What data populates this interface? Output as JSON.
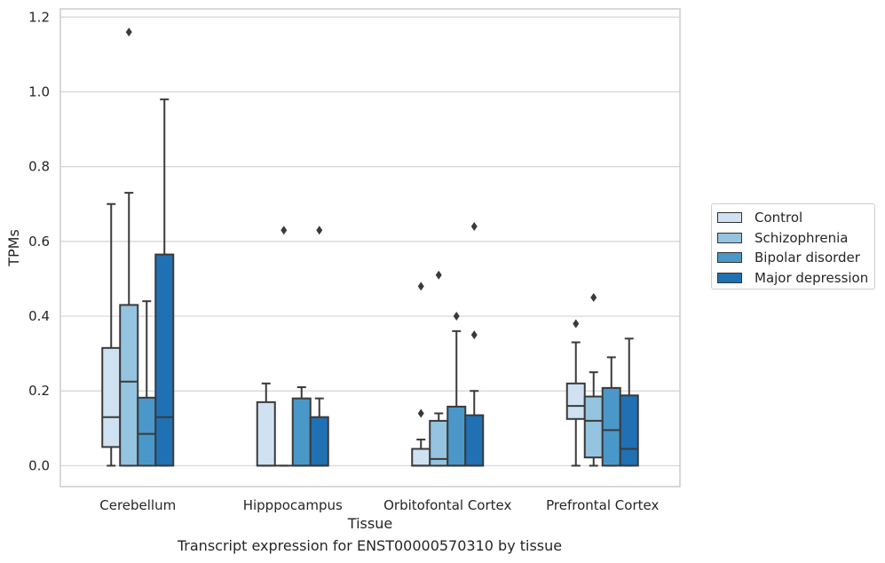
{
  "caption": "Transcript expression for ENST00000570310 by tissue",
  "chart_data": {
    "type": "boxplot",
    "xlabel": "Tissue",
    "ylabel": "TPMs",
    "ylim": [
      -0.056,
      1.222
    ],
    "yticks": [
      0.0,
      0.2,
      0.4,
      0.6,
      0.8,
      1.0,
      1.2
    ],
    "ytick_labels": [
      "0.0",
      "0.2",
      "0.4",
      "0.6",
      "0.8",
      "1.0",
      "1.2"
    ],
    "grid": "horizontal",
    "legend_position": "right-center",
    "categories": [
      "Cerebellum",
      "Hipppocampus",
      "Orbitofontal Cortex",
      "Prefrontal Cortex"
    ],
    "series": [
      {
        "name": "Control",
        "color": "#d0e1f2",
        "boxes": [
          {
            "whislo": 0.0,
            "q1": 0.05,
            "med": 0.13,
            "q3": 0.315,
            "whishi": 0.7,
            "fliers": []
          },
          {
            "whislo": 0.0,
            "q1": 0.0,
            "med": 0.0,
            "q3": 0.17,
            "whishi": 0.22,
            "fliers": []
          },
          {
            "whislo": 0.0,
            "q1": 0.0,
            "med": 0.0,
            "q3": 0.045,
            "whishi": 0.07,
            "fliers": [
              0.14,
              0.48
            ]
          },
          {
            "whislo": 0.0,
            "q1": 0.125,
            "med": 0.16,
            "q3": 0.22,
            "whishi": 0.33,
            "fliers": [
              0.38
            ]
          }
        ]
      },
      {
        "name": "Schizophrenia",
        "color": "#94c4df",
        "boxes": [
          {
            "whislo": 0.0,
            "q1": 0.0,
            "med": 0.225,
            "q3": 0.43,
            "whishi": 0.73,
            "fliers": [
              1.16
            ]
          },
          {
            "whislo": 0.0,
            "q1": 0.0,
            "med": 0.0,
            "q3": 0.0,
            "whishi": 0.0,
            "fliers": [
              0.63
            ]
          },
          {
            "whislo": 0.0,
            "q1": 0.0,
            "med": 0.018,
            "q3": 0.12,
            "whishi": 0.14,
            "fliers": [
              0.51
            ]
          },
          {
            "whislo": 0.0,
            "q1": 0.022,
            "med": 0.12,
            "q3": 0.185,
            "whishi": 0.25,
            "fliers": [
              0.45
            ]
          }
        ]
      },
      {
        "name": "Bipolar disorder",
        "color": "#4a98c9",
        "boxes": [
          {
            "whislo": 0.0,
            "q1": 0.0,
            "med": 0.085,
            "q3": 0.182,
            "whishi": 0.44,
            "fliers": []
          },
          {
            "whislo": 0.0,
            "q1": 0.0,
            "med": 0.0,
            "q3": 0.18,
            "whishi": 0.21,
            "fliers": []
          },
          {
            "whislo": 0.0,
            "q1": 0.0,
            "med": 0.0,
            "q3": 0.158,
            "whishi": 0.36,
            "fliers": [
              0.4
            ]
          },
          {
            "whislo": 0.0,
            "q1": 0.0,
            "med": 0.095,
            "q3": 0.208,
            "whishi": 0.29,
            "fliers": []
          }
        ]
      },
      {
        "name": "Major depression",
        "color": "#2070b4",
        "boxes": [
          {
            "whislo": 0.0,
            "q1": 0.0,
            "med": 0.13,
            "q3": 0.565,
            "whishi": 0.98,
            "fliers": []
          },
          {
            "whislo": 0.0,
            "q1": 0.0,
            "med": 0.0,
            "q3": 0.13,
            "whishi": 0.18,
            "fliers": [
              0.63
            ]
          },
          {
            "whislo": 0.0,
            "q1": 0.0,
            "med": 0.0,
            "q3": 0.135,
            "whishi": 0.2,
            "fliers": [
              0.35,
              0.64
            ]
          },
          {
            "whislo": 0.0,
            "q1": 0.0,
            "med": 0.045,
            "q3": 0.188,
            "whishi": 0.34,
            "fliers": []
          }
        ]
      }
    ]
  }
}
